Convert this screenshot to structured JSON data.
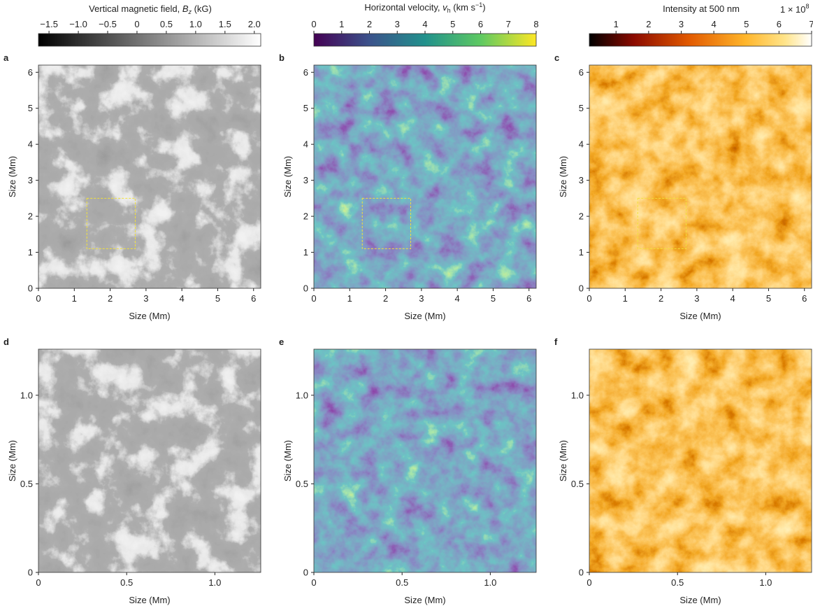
{
  "chart_data": [
    {
      "type": "heatmap",
      "panel": "a",
      "xlabel": "Size (Mm)",
      "ylabel": "Size (Mm)",
      "colormap": "gray",
      "xlim": [
        0,
        6.2
      ],
      "ylim": [
        0,
        6.2
      ],
      "xticks": [
        0,
        1,
        2,
        3,
        4,
        5,
        6
      ],
      "yticks": [
        0,
        1,
        2,
        3,
        4,
        5,
        6
      ],
      "region": {
        "xlim": [
          1.35,
          2.7
        ],
        "ylim": [
          1.1,
          2.5
        ]
      },
      "colorbar": {
        "label": [
          "Vertical magnetic field, ",
          "B",
          "z",
          " (kG)"
        ],
        "lim": [
          -1.68,
          2.11
        ],
        "ticks": [
          {
            "value": -1.5,
            "label": "−1.5"
          },
          {
            "value": -1,
            "label": "−1.0"
          },
          {
            "value": -0.5,
            "label": "−0.5"
          },
          0,
          0.5,
          {
            "value": 1,
            "label": "1.0"
          },
          1.5,
          {
            "value": 2,
            "label": "2.0"
          }
        ]
      }
    },
    {
      "type": "heatmap",
      "panel": "b",
      "xlabel": "Size (Mm)",
      "ylabel": "Size (Mm)",
      "colormap": "viridis",
      "xlim": [
        0,
        6.2
      ],
      "ylim": [
        0,
        6.2
      ],
      "xticks": [
        0,
        1,
        2,
        3,
        4,
        5,
        6
      ],
      "yticks": [
        0,
        1,
        2,
        3,
        4,
        5,
        6
      ],
      "region": {
        "xlim": [
          1.35,
          2.7
        ],
        "ylim": [
          1.1,
          2.5
        ]
      },
      "colorbar": {
        "label": [
          "Horizontal velocity, ",
          "v",
          "h",
          " (km s",
          "−1",
          ")"
        ],
        "lim": [
          0,
          8
        ],
        "ticks": [
          0,
          1,
          2,
          3,
          4,
          5,
          6,
          7,
          8
        ]
      }
    },
    {
      "type": "heatmap",
      "panel": "c",
      "xlabel": "Size (Mm)",
      "ylabel": "Size (Mm)",
      "colormap": "hot",
      "xlim": [
        0,
        6.2
      ],
      "ylim": [
        0,
        6.2
      ],
      "xticks": [
        0,
        1,
        2,
        3,
        4,
        5,
        6
      ],
      "yticks": [
        0,
        1,
        2,
        3,
        4,
        5,
        6
      ],
      "region": {
        "xlim": [
          1.35,
          2.7
        ],
        "ylim": [
          1.1,
          2.5
        ]
      },
      "colorbar": {
        "label": [
          "Intensity at 500 nm"
        ],
        "multiplier": [
          "1 × 10",
          "8"
        ],
        "lim": [
          0.18,
          7
        ],
        "ticks": [
          1,
          2,
          3,
          4,
          5,
          6,
          7
        ]
      }
    },
    {
      "type": "heatmap",
      "panel": "d",
      "xlabel": "Size (Mm)",
      "ylabel": "Size (Mm)",
      "colormap": "gray",
      "xlim": [
        0,
        1.26
      ],
      "ylim": [
        0,
        1.26
      ],
      "xticks": [
        0,
        0.5,
        {
          "value": 1,
          "label": "1.0"
        }
      ],
      "yticks": [
        0,
        0.5,
        {
          "value": 1,
          "label": "1.0"
        }
      ]
    },
    {
      "type": "heatmap",
      "panel": "e",
      "xlabel": "Size (Mm)",
      "ylabel": "Size (Mm)",
      "colormap": "viridis",
      "xlim": [
        0,
        1.26
      ],
      "ylim": [
        0,
        1.26
      ],
      "xticks": [
        0,
        0.5,
        {
          "value": 1,
          "label": "1.0"
        }
      ],
      "yticks": [
        0,
        0.5,
        {
          "value": 1,
          "label": "1.0"
        }
      ]
    },
    {
      "type": "heatmap",
      "panel": "f",
      "xlabel": "Size (Mm)",
      "ylabel": "Size (Mm)",
      "colormap": "hot",
      "xlim": [
        0,
        1.26
      ],
      "ylim": [
        0,
        1.26
      ],
      "xticks": [
        0,
        0.5,
        {
          "value": 1,
          "label": "1.0"
        }
      ],
      "yticks": [
        0,
        0.5,
        {
          "value": 1,
          "label": "1.0"
        }
      ]
    }
  ]
}
